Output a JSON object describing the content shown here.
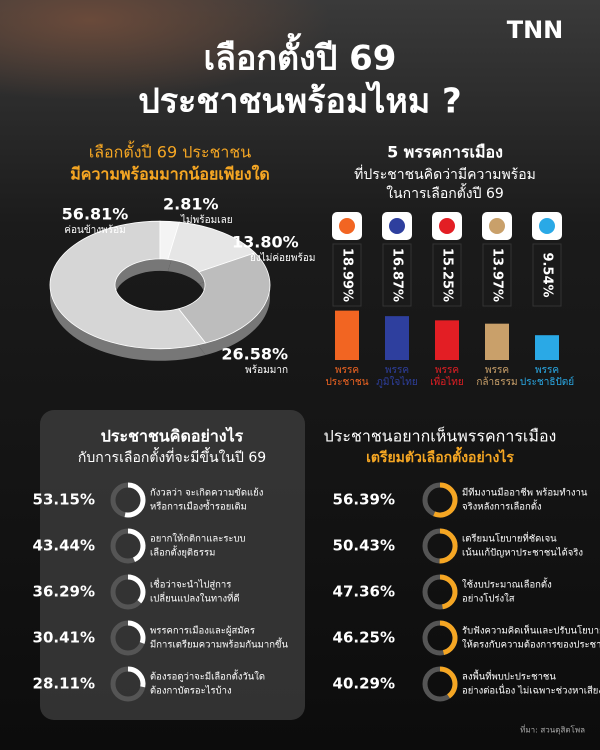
{
  "header": {
    "logo": "TNN",
    "title_lines": [
      "เลือกตั้งปี 69",
      "ประชาชนพร้อมไหม ?"
    ]
  },
  "source": "ที่มา: สวนดุสิตโพล",
  "chart_data": [
    {
      "type": "donut",
      "title": "เลือกตั้งปี 69 ประชาชน",
      "subtitle": "มีความพร้อมมากน้อยเพียงใด",
      "categories": [
        "ค่อนข้างพร้อม",
        "ไม่พร้อมเลย",
        "ยังไม่ค่อยพร้อม",
        "พร้อมมาก"
      ],
      "values": [
        56.81,
        2.81,
        13.8,
        26.58
      ],
      "value_labels": [
        "56.81%",
        "2.81%",
        "13.80%",
        "26.58%"
      ],
      "colors": [
        "#d6d6d6",
        "#f4f4f4",
        "#e6e6e6",
        "#bdbdbd"
      ]
    },
    {
      "type": "bar",
      "title": "5 พรรคการเมือง",
      "subtitle": [
        "ที่ประชาชนคิดว่ามีความพร้อม",
        "ในการเลือกตั้งปี 69"
      ],
      "categories": [
        [
          "พรรค",
          "ประชาชน"
        ],
        [
          "พรรค",
          "ภูมิใจไทย"
        ],
        [
          "พรรค",
          "เพื่อไทย"
        ],
        [
          "พรรค",
          "กล้าธรรม"
        ],
        [
          "พรรค",
          "ประชาธิปัตย์"
        ]
      ],
      "values": [
        18.99,
        16.87,
        15.25,
        13.97,
        9.54
      ],
      "value_labels": [
        "18.99%",
        "16.87%",
        "15.25%",
        "13.97%",
        "9.54%"
      ],
      "colors": [
        "#f26522",
        "#2e3f9e",
        "#e31e24",
        "#c9a06a",
        "#2aa9e6"
      ]
    },
    {
      "type": "progress",
      "title": "ประชาชนคิดอย่างไร",
      "subtitle": "กับการเลือกตั้งที่จะมีขึ้นในปี 69",
      "color": "#ffffff",
      "categories": [
        [
          "กังวลว่า จะเกิดความขัดแย้ง",
          "หรือการเมืองซ้ำรอยเดิม"
        ],
        [
          "อยากให้กติกาและระบบ",
          "เลือกตั้งยุติธรรม"
        ],
        [
          "เชื่อว่าจะนำไปสู่การ",
          "เปลี่ยนแปลงในทางที่ดี"
        ],
        [
          "พรรคการเมืองและผู้สมัคร",
          "มีการเตรียมความพร้อมกันมากขึ้น"
        ],
        [
          "ต้องรอดูว่าจะมีเลือกตั้งวันใด",
          "ต้องกาบัตรอะไรบ้าง"
        ]
      ],
      "values": [
        53.15,
        43.44,
        36.29,
        30.41,
        28.11
      ],
      "value_labels": [
        "53.15%",
        "43.44%",
        "36.29%",
        "30.41%",
        "28.11%"
      ]
    },
    {
      "type": "progress",
      "title": "ประชาชนอยากเห็นพรรคการเมือง",
      "subtitle": "เตรียมตัวเลือกตั้งอย่างไร",
      "color": "#f5a623",
      "categories": [
        [
          "มีทีมงานมืออาชีพ พร้อมทำงาน",
          "จริงหลังการเลือกตั้ง"
        ],
        [
          "เตรียมนโยบายที่ชัดเจน",
          "เน้นแก้ปัญหาประชาชนได้จริง"
        ],
        [
          "ใช้งบประมาณเลือกตั้ง",
          "อย่างโปร่งใส"
        ],
        [
          "รับฟังความคิดเห็นและปรับนโยบาย",
          "ให้ตรงกับความต้องการของประชาชน"
        ],
        [
          "ลงพื้นที่พบปะประชาชน",
          "อย่างต่อเนื่อง ไม่เฉพาะช่วงหาเสียง"
        ]
      ],
      "values": [
        56.39,
        50.43,
        47.36,
        46.25,
        40.29
      ],
      "value_labels": [
        "56.39%",
        "50.43%",
        "47.36%",
        "46.25%",
        "40.29%"
      ]
    }
  ]
}
